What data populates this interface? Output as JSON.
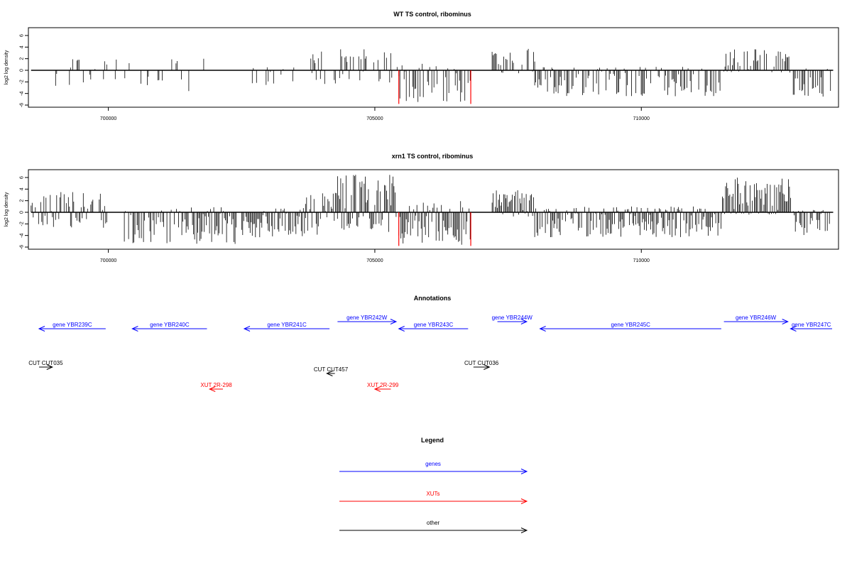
{
  "colors": {
    "gene": "#0000ff",
    "xut": "#ff0000",
    "other": "#000000",
    "highlight": "#ff0000",
    "bar": "#000000"
  },
  "chart_data": [
    {
      "type": "bar",
      "title": "WT TS control, ribominus",
      "xlabel": "",
      "ylabel": "log2 log density",
      "xlim": [
        698500,
        713700
      ],
      "ylim": [
        -6,
        7
      ],
      "xticks": [
        700000,
        705000,
        710000
      ],
      "xtick_labels": [
        "700000",
        "705000",
        "710000"
      ],
      "yticks": [
        -6,
        -4,
        -2,
        0,
        2,
        4,
        6
      ],
      "ytick_labels": [
        "-6",
        "-4",
        "-2",
        "0",
        "2",
        "4",
        "6"
      ],
      "baseline": {
        "from": 698550,
        "to": 713600
      },
      "highlight_lines": [
        {
          "x": 705450,
          "value": -5.8
        },
        {
          "x": 706800,
          "value": -5.8
        }
      ],
      "density_segments": [
        {
          "from": 698950,
          "to": 700350,
          "density": 0.2,
          "pos_max": 2.0,
          "neg_max": 3.0,
          "seed": 11
        },
        {
          "from": 700350,
          "to": 702100,
          "density": 0.18,
          "pos_max": 2.4,
          "neg_max": 3.8,
          "seed": 12
        },
        {
          "from": 702700,
          "to": 703800,
          "density": 0.25,
          "pos_max": 0.8,
          "neg_max": 2.8,
          "seed": 13
        },
        {
          "from": 703800,
          "to": 705450,
          "density": 0.45,
          "pos_max": 3.8,
          "neg_max": 2.6,
          "seed": 14
        },
        {
          "from": 705450,
          "to": 706800,
          "density": 0.55,
          "pos_max": 1.5,
          "neg_max": 5.5,
          "seed": 15
        },
        {
          "from": 707200,
          "to": 708000,
          "density": 0.65,
          "pos_max": 3.8,
          "neg_max": 0.8,
          "seed": 16
        },
        {
          "from": 708000,
          "to": 711500,
          "density": 0.55,
          "pos_max": 0.6,
          "neg_max": 4.5,
          "seed": 17
        },
        {
          "from": 711550,
          "to": 712800,
          "density": 0.65,
          "pos_max": 3.8,
          "neg_max": 0.4,
          "seed": 18
        },
        {
          "from": 712850,
          "to": 713550,
          "density": 0.6,
          "pos_max": 0.4,
          "neg_max": 4.8,
          "seed": 19
        }
      ]
    },
    {
      "type": "bar",
      "title": "xrn1 TS control, ribominus",
      "xlabel": "",
      "ylabel": "log2 log density",
      "xlim": [
        698500,
        713700
      ],
      "ylim": [
        -6,
        7
      ],
      "xticks": [
        700000,
        705000,
        710000
      ],
      "xtick_labels": [
        "700000",
        "705000",
        "710000"
      ],
      "yticks": [
        -6,
        -4,
        -2,
        0,
        2,
        4,
        6
      ],
      "ytick_labels": [
        "-6",
        "-4",
        "-2",
        "0",
        "2",
        "4",
        "6"
      ],
      "baseline": {
        "from": 698550,
        "to": 713600
      },
      "highlight_lines": [
        {
          "x": 705450,
          "value": -5.8
        },
        {
          "x": 706800,
          "value": -5.8
        }
      ],
      "density_segments": [
        {
          "from": 698550,
          "to": 700000,
          "density": 0.55,
          "pos_max": 3.6,
          "neg_max": 2.8,
          "seed": 21
        },
        {
          "from": 700300,
          "to": 702400,
          "density": 0.75,
          "pos_max": 1.2,
          "neg_max": 5.5,
          "seed": 22
        },
        {
          "from": 702500,
          "to": 703700,
          "density": 0.85,
          "pos_max": 1.0,
          "neg_max": 4.5,
          "seed": 23
        },
        {
          "from": 703700,
          "to": 704300,
          "density": 0.9,
          "pos_max": 3.8,
          "neg_max": 4.0,
          "seed": 24
        },
        {
          "from": 704300,
          "to": 705400,
          "density": 0.95,
          "pos_max": 6.5,
          "neg_max": 3.5,
          "seed": 25
        },
        {
          "from": 705450,
          "to": 706800,
          "density": 0.8,
          "pos_max": 2.0,
          "neg_max": 5.6,
          "seed": 26
        },
        {
          "from": 707200,
          "to": 708000,
          "density": 0.95,
          "pos_max": 3.8,
          "neg_max": 1.0,
          "seed": 27
        },
        {
          "from": 708000,
          "to": 711500,
          "density": 0.85,
          "pos_max": 1.0,
          "neg_max": 4.3,
          "seed": 28
        },
        {
          "from": 711500,
          "to": 712800,
          "density": 0.97,
          "pos_max": 6.2,
          "neg_max": 0.4,
          "seed": 29
        },
        {
          "from": 712850,
          "to": 713550,
          "density": 0.85,
          "pos_max": 0.4,
          "neg_max": 4.0,
          "seed": 30
        }
      ]
    }
  ],
  "annotations": {
    "title": "Annotations",
    "features": [
      {
        "label": "gene YBR239C",
        "type": "gene",
        "strand": "-",
        "start": 698700,
        "end": 699950,
        "row": 1
      },
      {
        "label": "gene YBR240C",
        "type": "gene",
        "strand": "-",
        "start": 700450,
        "end": 701850,
        "row": 1
      },
      {
        "label": "gene YBR241C",
        "type": "gene",
        "strand": "-",
        "start": 702550,
        "end": 704150,
        "row": 1
      },
      {
        "label": "gene YBR242W",
        "type": "gene",
        "strand": "+",
        "start": 704300,
        "end": 705400,
        "row": 0
      },
      {
        "label": "gene YBR243C",
        "type": "gene",
        "strand": "-",
        "start": 705450,
        "end": 706750,
        "row": 1
      },
      {
        "label": "gene YBR244W",
        "type": "gene",
        "strand": "+",
        "start": 707300,
        "end": 707850,
        "row": 0
      },
      {
        "label": "gene YBR245C",
        "type": "gene",
        "strand": "-",
        "start": 708100,
        "end": 711500,
        "row": 1
      },
      {
        "label": "gene YBR246W",
        "type": "gene",
        "strand": "+",
        "start": 711550,
        "end": 712750,
        "row": 0
      },
      {
        "label": "gene YBR247C",
        "type": "gene",
        "strand": "-",
        "start": 712800,
        "end": 713700,
        "row": 1
      },
      {
        "label": "CUT CUT035",
        "type": "other",
        "strand": "+",
        "start": 698700,
        "end": 698950,
        "row": 2
      },
      {
        "label": "CUT CUT457",
        "type": "other",
        "strand": "-",
        "start": 704100,
        "end": 704250,
        "row": 3
      },
      {
        "label": "CUT CUT036",
        "type": "other",
        "strand": "+",
        "start": 706850,
        "end": 707150,
        "row": 2
      },
      {
        "label": "XUT 2R-298",
        "type": "xut",
        "strand": "-",
        "start": 701900,
        "end": 702150,
        "row": 4
      },
      {
        "label": "XUT 2R-299",
        "type": "xut",
        "strand": "-",
        "start": 705000,
        "end": 705300,
        "row": 4
      }
    ]
  },
  "legend": {
    "title": "Legend",
    "items": [
      {
        "label": "genes",
        "type": "gene"
      },
      {
        "label": "XUTs",
        "type": "xut"
      },
      {
        "label": "other",
        "type": "other"
      }
    ]
  }
}
